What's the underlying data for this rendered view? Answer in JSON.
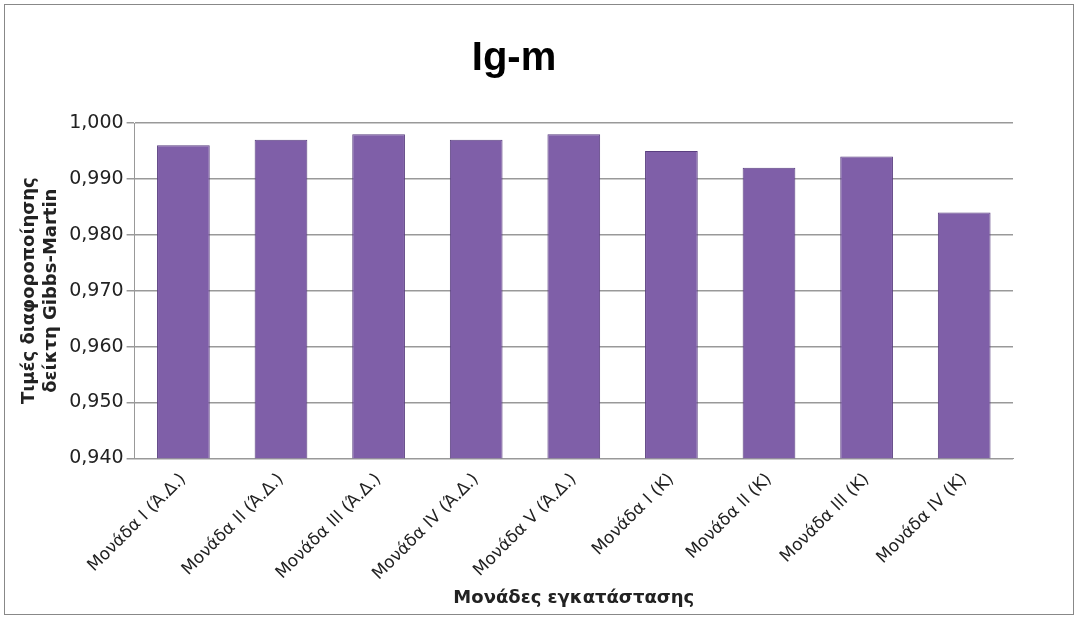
{
  "chart_data": {
    "type": "bar",
    "title": "Ig-m",
    "xlabel": "Μονάδες εγκατάστασης",
    "ylabel": "Τιμές διαφοροποίησης δείκτη Gibbs-Martin",
    "categories": [
      "Μονάδα I (Ά.Δ.)",
      "Μονάδα II (Ά.Δ.)",
      "Μονάδα III (Ά.Δ.)",
      "Μονάδα IV (Ά.Δ.)",
      "Μονάδα V (Ά.Δ.)",
      "Μονάδα I (Κ)",
      "Μονάδα II (Κ)",
      "Μονάδα III (Κ)",
      "Μονάδα IV (Κ)"
    ],
    "values": [
      0.996,
      0.997,
      0.998,
      0.997,
      0.998,
      0.995,
      0.992,
      0.994,
      0.984
    ],
    "color": "#7f5fa8",
    "ylim": [
      0.94,
      1.0
    ],
    "yticks": [
      {
        "value": 0.94,
        "label": "0,940"
      },
      {
        "value": 0.95,
        "label": "0,950"
      },
      {
        "value": 0.96,
        "label": "0,960"
      },
      {
        "value": 0.97,
        "label": "0,970"
      },
      {
        "value": 0.98,
        "label": "0,980"
      },
      {
        "value": 0.99,
        "label": "0,990"
      },
      {
        "value": 1.0,
        "label": "1,000"
      }
    ],
    "grid": "y"
  }
}
